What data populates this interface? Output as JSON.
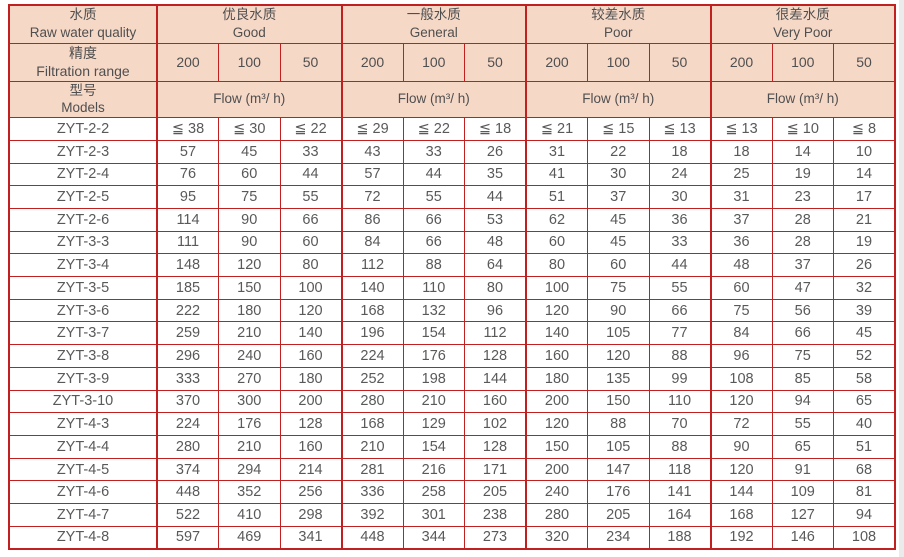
{
  "colors": {
    "border_red": "#c02020",
    "header_bg": "#f6d8c7",
    "header_text": "#4f4f4f",
    "body_text": "#595959"
  },
  "table": {
    "header": {
      "corner": [
        {
          "zh": "水质",
          "en": "Raw water quality"
        },
        {
          "zh": "精度",
          "en": "Filtration range"
        },
        {
          "zh": "型号",
          "en": "Models"
        }
      ],
      "groups": [
        {
          "zh": "优良水质",
          "en": "Good"
        },
        {
          "zh": "一般水质",
          "en": "General"
        },
        {
          "zh": "较差水质",
          "en": "Poor"
        },
        {
          "zh": "很差水质",
          "en": "Very Poor"
        }
      ],
      "filtration": [
        "200",
        "100",
        "50"
      ],
      "flow": "Flow (m³/ h)"
    },
    "rows": [
      {
        "model": "ZYT-2-2",
        "values": [
          "≦ 38",
          "≦ 30",
          "≦ 22",
          "≦ 29",
          "≦ 22",
          "≦ 18",
          "≦ 21",
          "≦ 15",
          "≦ 13",
          "≦ 13",
          "≦ 10",
          "≦ 8"
        ]
      },
      {
        "model": "ZYT-2-3",
        "values": [
          "57",
          "45",
          "33",
          "43",
          "33",
          "26",
          "31",
          "22",
          "18",
          "18",
          "14",
          "10"
        ]
      },
      {
        "model": "ZYT-2-4",
        "values": [
          "76",
          "60",
          "44",
          "57",
          "44",
          "35",
          "41",
          "30",
          "24",
          "25",
          "19",
          "14"
        ]
      },
      {
        "model": "ZYT-2-5",
        "values": [
          "95",
          "75",
          "55",
          "72",
          "55",
          "44",
          "51",
          "37",
          "30",
          "31",
          "23",
          "17"
        ]
      },
      {
        "model": "ZYT-2-6",
        "values": [
          "114",
          "90",
          "66",
          "86",
          "66",
          "53",
          "62",
          "45",
          "36",
          "37",
          "28",
          "21"
        ]
      },
      {
        "model": "ZYT-3-3",
        "values": [
          "111",
          "90",
          "60",
          "84",
          "66",
          "48",
          "60",
          "45",
          "33",
          "36",
          "28",
          "19"
        ]
      },
      {
        "model": "ZYT-3-4",
        "values": [
          "148",
          "120",
          "80",
          "112",
          "88",
          "64",
          "80",
          "60",
          "44",
          "48",
          "37",
          "26"
        ]
      },
      {
        "model": "ZYT-3-5",
        "values": [
          "185",
          "150",
          "100",
          "140",
          "110",
          "80",
          "100",
          "75",
          "55",
          "60",
          "47",
          "32"
        ]
      },
      {
        "model": "ZYT-3-6",
        "values": [
          "222",
          "180",
          "120",
          "168",
          "132",
          "96",
          "120",
          "90",
          "66",
          "75",
          "56",
          "39"
        ]
      },
      {
        "model": "ZYT-3-7",
        "values": [
          "259",
          "210",
          "140",
          "196",
          "154",
          "112",
          "140",
          "105",
          "77",
          "84",
          "66",
          "45"
        ]
      },
      {
        "model": "ZYT-3-8",
        "values": [
          "296",
          "240",
          "160",
          "224",
          "176",
          "128",
          "160",
          "120",
          "88",
          "96",
          "75",
          "52"
        ]
      },
      {
        "model": "ZYT-3-9",
        "values": [
          "333",
          "270",
          "180",
          "252",
          "198",
          "144",
          "180",
          "135",
          "99",
          "108",
          "85",
          "58"
        ]
      },
      {
        "model": "ZYT-3-10",
        "values": [
          "370",
          "300",
          "200",
          "280",
          "210",
          "160",
          "200",
          "150",
          "110",
          "120",
          "94",
          "65"
        ]
      },
      {
        "model": "ZYT-4-3",
        "values": [
          "224",
          "176",
          "128",
          "168",
          "129",
          "102",
          "120",
          "88",
          "70",
          "72",
          "55",
          "40"
        ]
      },
      {
        "model": "ZYT-4-4",
        "values": [
          "280",
          "210",
          "160",
          "210",
          "154",
          "128",
          "150",
          "105",
          "88",
          "90",
          "65",
          "51"
        ]
      },
      {
        "model": "ZYT-4-5",
        "values": [
          "374",
          "294",
          "214",
          "281",
          "216",
          "171",
          "200",
          "147",
          "118",
          "120",
          "91",
          "68"
        ]
      },
      {
        "model": "ZYT-4-6",
        "values": [
          "448",
          "352",
          "256",
          "336",
          "258",
          "205",
          "240",
          "176",
          "141",
          "144",
          "109",
          "81"
        ]
      },
      {
        "model": "ZYT-4-7",
        "values": [
          "522",
          "410",
          "298",
          "392",
          "301",
          "238",
          "280",
          "205",
          "164",
          "168",
          "127",
          "94"
        ]
      },
      {
        "model": "ZYT-4-8",
        "values": [
          "597",
          "469",
          "341",
          "448",
          "344",
          "273",
          "320",
          "234",
          "188",
          "192",
          "146",
          "108"
        ]
      }
    ]
  }
}
